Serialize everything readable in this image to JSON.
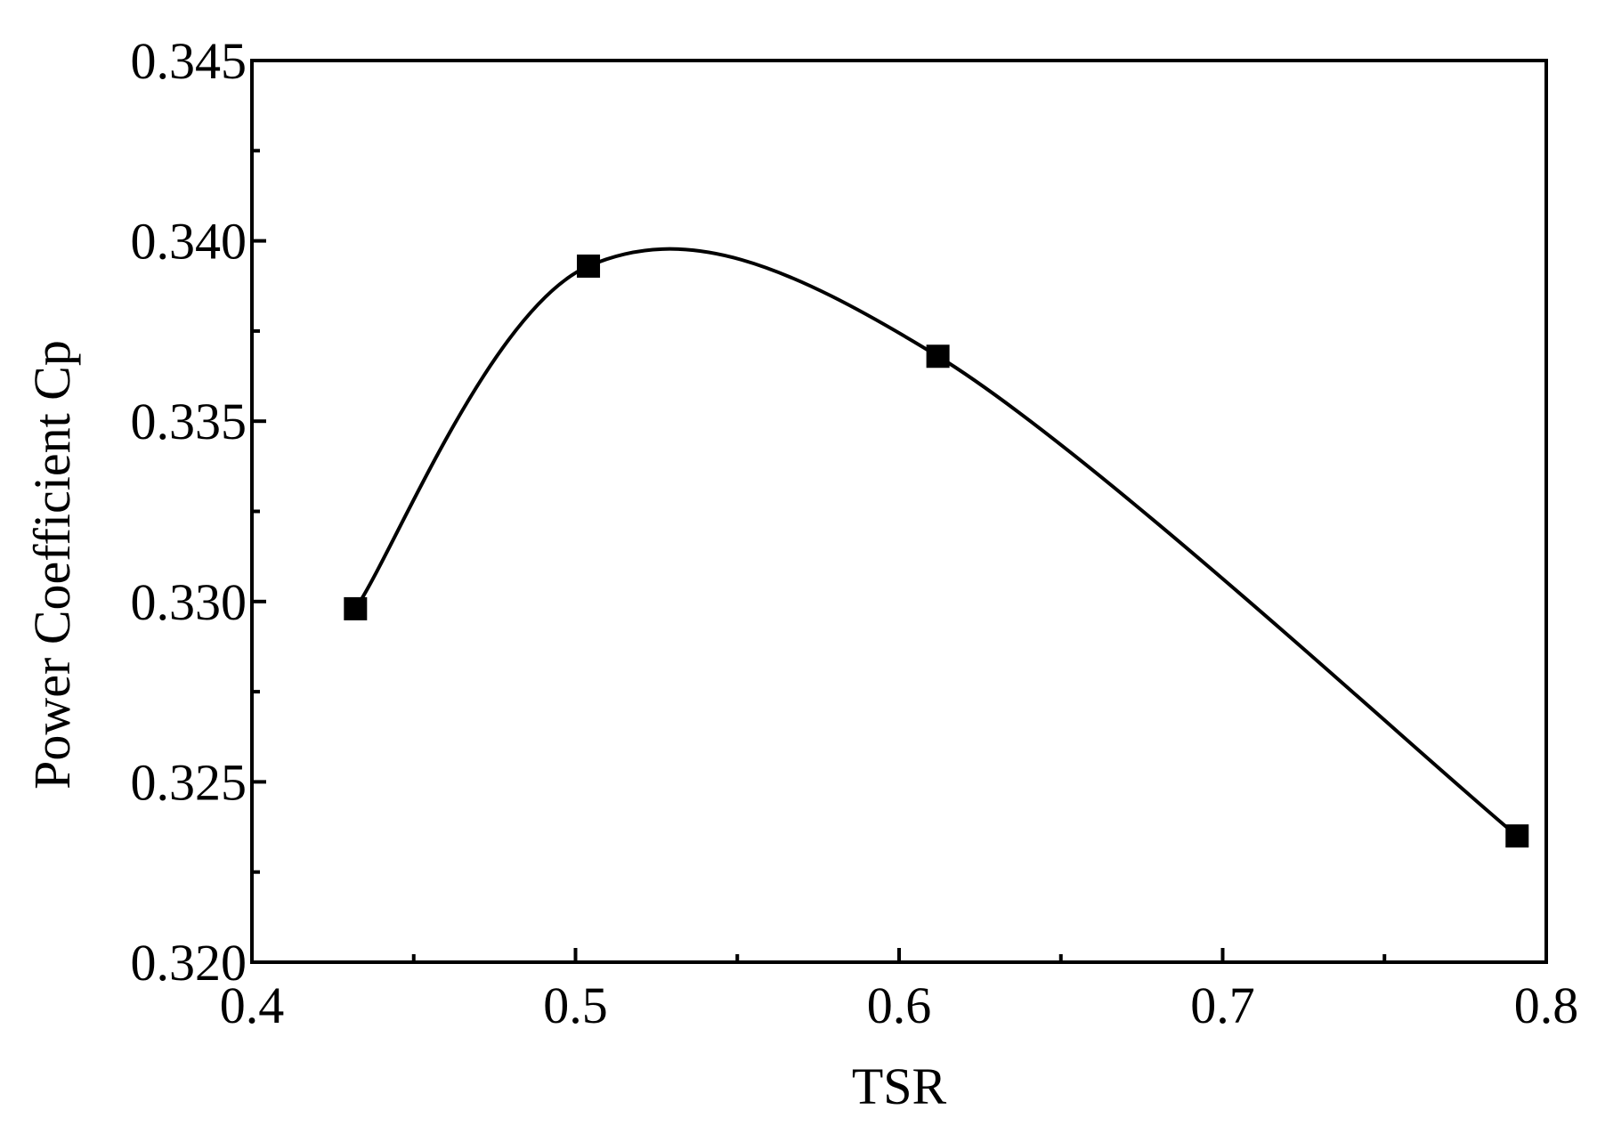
{
  "chart_data": {
    "type": "line",
    "title": "",
    "xlabel": "TSR",
    "ylabel": "Power Coefficient Cp",
    "xlim": [
      0.4,
      0.8
    ],
    "ylim": [
      0.32,
      0.345
    ],
    "x_ticks": [
      "0.4",
      "0.5",
      "0.6",
      "0.7",
      "0.8"
    ],
    "y_ticks": [
      "0.320",
      "0.325",
      "0.330",
      "0.335",
      "0.340",
      "0.345"
    ],
    "x_minor_tick_values": [
      0.45,
      0.55,
      0.65,
      0.75
    ],
    "y_minor_tick_values": [
      0.3225,
      0.3275,
      0.3325,
      0.3375,
      0.3425
    ],
    "grid": false,
    "legend": "none",
    "series": [
      {
        "marker": "square",
        "color": "#000000",
        "smooth": true,
        "x": [
          0.432,
          0.504,
          0.612,
          0.791
        ],
        "y": [
          0.3298,
          0.3393,
          0.3368,
          0.3235
        ]
      }
    ]
  }
}
